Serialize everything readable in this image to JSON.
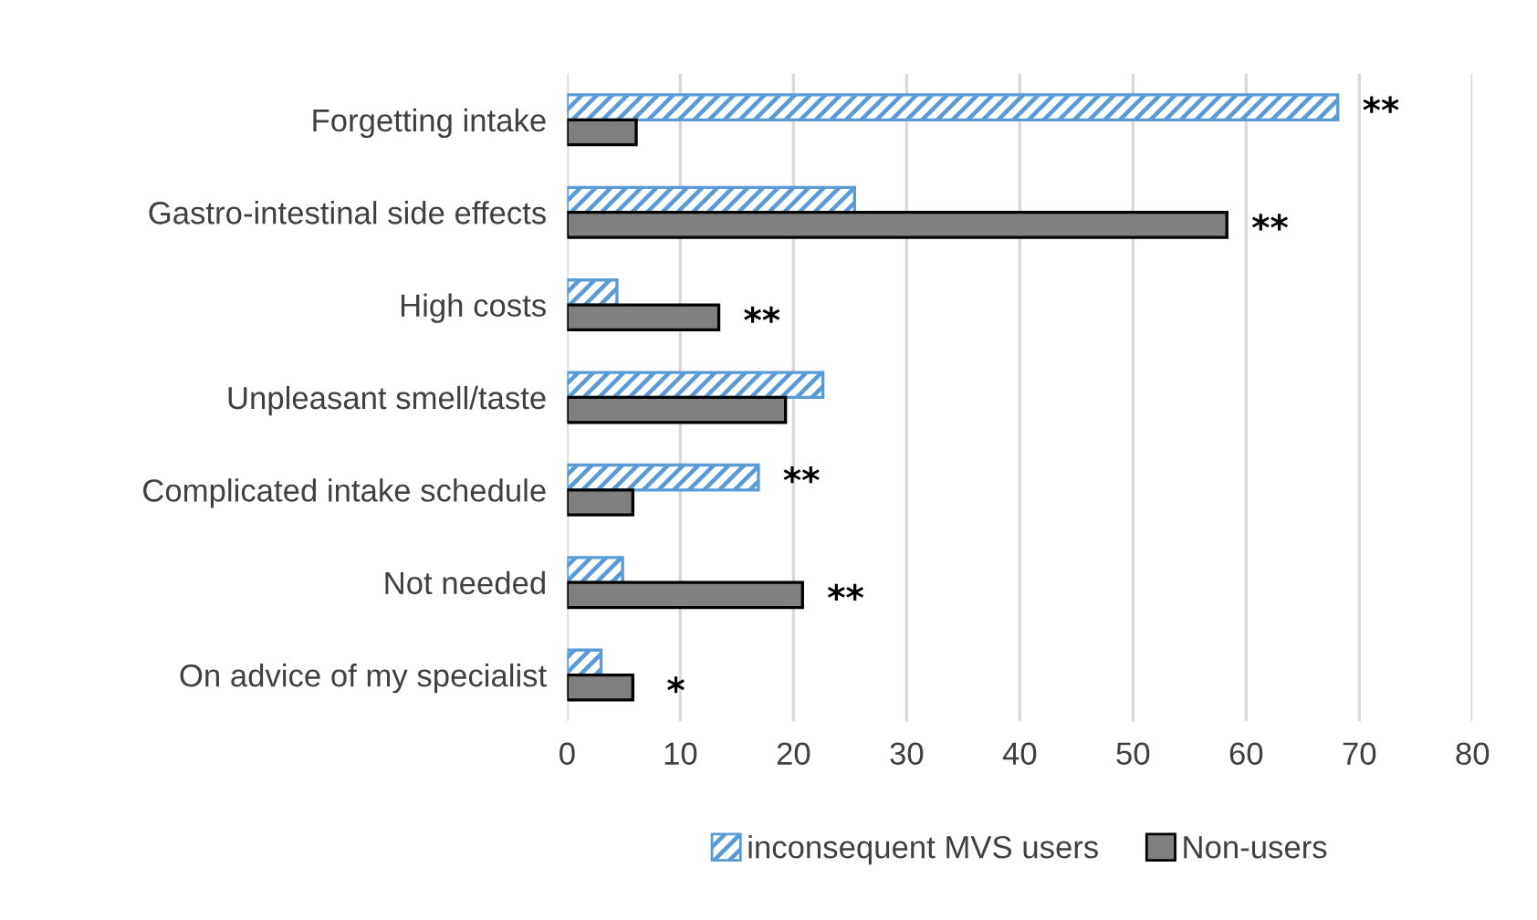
{
  "chart_data": {
    "type": "bar",
    "orientation": "horizontal",
    "categories": [
      "Forgetting intake",
      "Gastro-intestinal side effects",
      "High costs",
      "Unpleasant smell/taste",
      "Complicated intake schedule",
      "Not needed",
      "On advice of my specialist"
    ],
    "series": [
      {
        "name": "inconsequent MVS users",
        "color": "#5b9bd5",
        "values": [
          68.1,
          25.4,
          4.4,
          22.6,
          16.9,
          4.9,
          3.0
        ]
      },
      {
        "name": "Non-users",
        "color": "#808080",
        "values": [
          6.1,
          58.3,
          13.4,
          19.3,
          5.8,
          20.8,
          5.8
        ]
      }
    ],
    "xlim": [
      0,
      80
    ],
    "xticks": [
      0,
      10,
      20,
      30,
      40,
      50,
      60,
      70,
      80
    ],
    "grid": "x",
    "legend": "bottom",
    "annotations": [
      {
        "text": "**",
        "x": 68.1,
        "y": "Forgetting intake"
      },
      {
        "text": "**",
        "x": 58.3,
        "y": "Gastro-intestinal side effects"
      },
      {
        "text": "**",
        "x": 13.4,
        "y": "High costs"
      },
      {
        "text": "**",
        "x": 16.9,
        "y": "Complicated intake schedule"
      },
      {
        "text": "**",
        "x": 20.8,
        "y": "Not needed"
      },
      {
        "text": "*",
        "x": 5.8,
        "y": "On advice of my specialist"
      }
    ]
  }
}
